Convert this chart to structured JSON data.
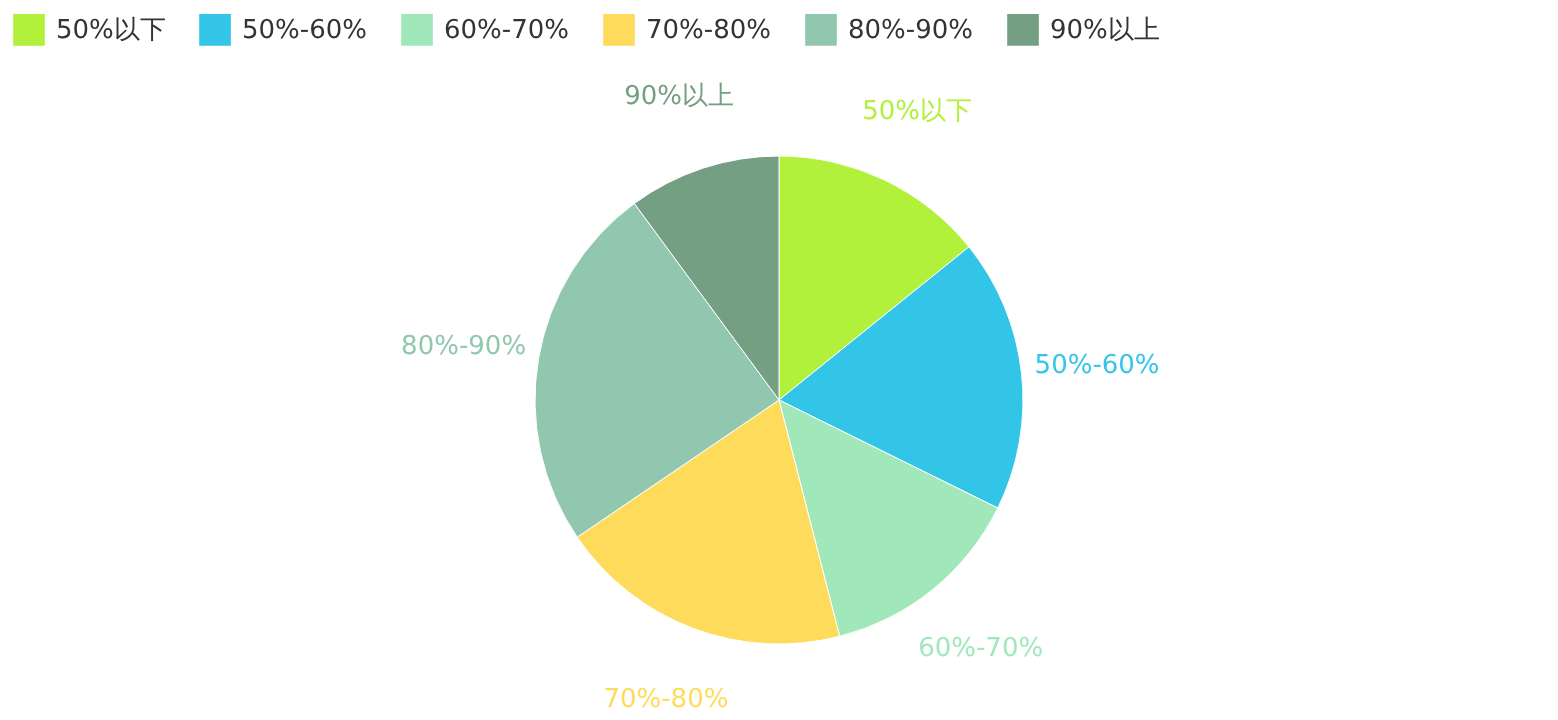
{
  "chart_data": {
    "type": "pie",
    "categories": [
      "50%以下",
      "50%-60%",
      "60%-70%",
      "70%-80%",
      "80%-90%",
      "90%以上"
    ],
    "values": [
      14.2,
      18.1,
      13.7,
      19.5,
      24.4,
      10.1
    ],
    "colors": [
      "#b1f03b",
      "#33c5e8",
      "#a0e8b9",
      "#ffdb5c",
      "#91c7ae",
      "#749f83"
    ],
    "legend": "top"
  }
}
